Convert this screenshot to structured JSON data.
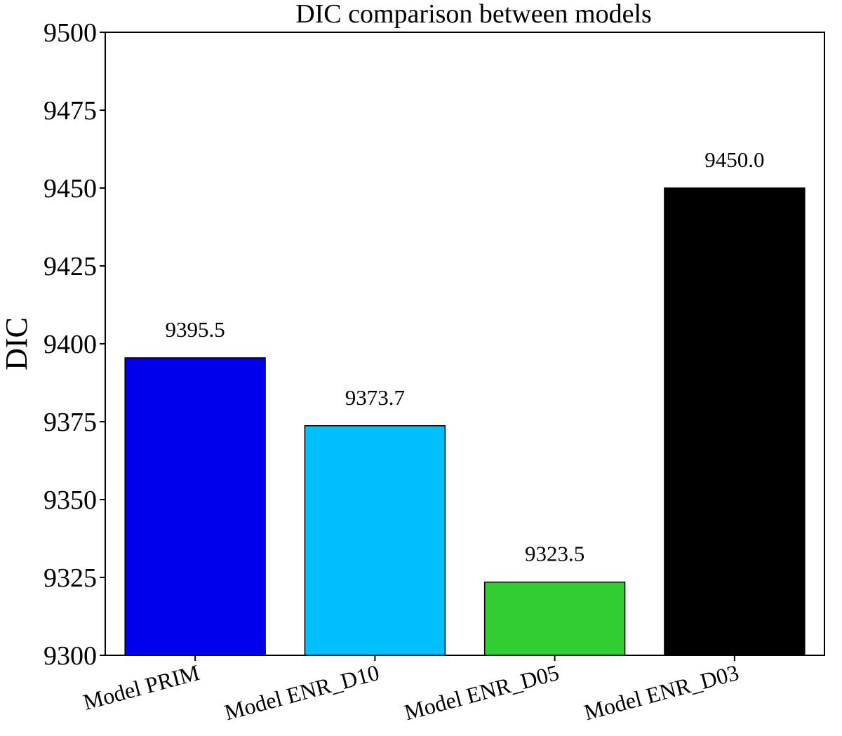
{
  "chart_data": {
    "type": "bar",
    "title": "DIC comparison between models",
    "xlabel": "",
    "ylabel": "DIC",
    "categories": [
      "Model PRIM",
      "Model ENR_D10",
      "Model ENR_D05",
      "Model ENR_D03"
    ],
    "values": [
      9395.5,
      9373.7,
      9323.5,
      9450.0
    ],
    "value_labels": [
      "9395.5",
      "9373.7",
      "9323.5",
      "9450.0"
    ],
    "colors": [
      "#0000ee",
      "#00bfff",
      "#32cd32",
      "#000000"
    ],
    "edge_color": "#000000",
    "ylim": [
      9300,
      9500
    ],
    "yticks": [
      9300,
      9325,
      9350,
      9375,
      9400,
      9425,
      9450,
      9475,
      9500
    ],
    "ytick_labels": [
      "9300",
      "9325",
      "9350",
      "9375",
      "9400",
      "9425",
      "9450",
      "9475",
      "9500"
    ],
    "grid": false,
    "legend": "none"
  }
}
